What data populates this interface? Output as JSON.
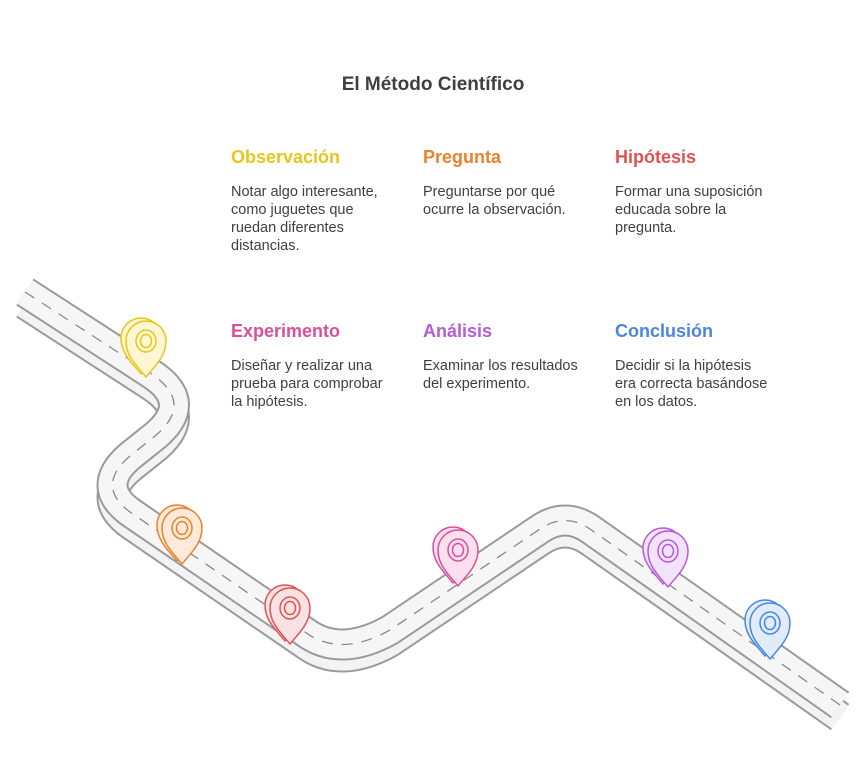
{
  "title": "El Método Científico",
  "steps": [
    {
      "heading": "Observación",
      "text": "Notar algo interesante, como juguetes que ruedan diferentes distancias.",
      "color": "#e6c619"
    },
    {
      "heading": "Pregunta",
      "text": "Preguntarse por qué ocurre la observación.",
      "color": "#e8822b"
    },
    {
      "heading": "Hipótesis",
      "text": "Formar una suposición educada sobre la pregunta.",
      "color": "#e05252"
    },
    {
      "heading": "Experimento",
      "text": "Diseñar y realizar una prueba para comprobar la hipótesis.",
      "color": "#d9509a"
    },
    {
      "heading": "Análisis",
      "text": "Examinar los resultados del experimento.",
      "color": "#b65ad9"
    },
    {
      "heading": "Conclusión",
      "text": "Decidir si la hipótesis era correcta basándose en los datos.",
      "color": "#4a86e0"
    }
  ],
  "markers": [
    {
      "icon": "map-pin-icon",
      "color": "#e6c619",
      "fill": "#fcf7d2"
    },
    {
      "icon": "map-pin-icon",
      "color": "#e8822b",
      "fill": "#fdeadb"
    },
    {
      "icon": "map-pin-icon",
      "color": "#e05252",
      "fill": "#fbe2e2"
    },
    {
      "icon": "map-pin-icon",
      "color": "#d9509a",
      "fill": "#fae0ef"
    },
    {
      "icon": "map-pin-icon",
      "color": "#b65ad9",
      "fill": "#f2e3fa"
    },
    {
      "icon": "map-pin-icon",
      "color": "#4a86e0",
      "fill": "#e1ecfb"
    }
  ]
}
